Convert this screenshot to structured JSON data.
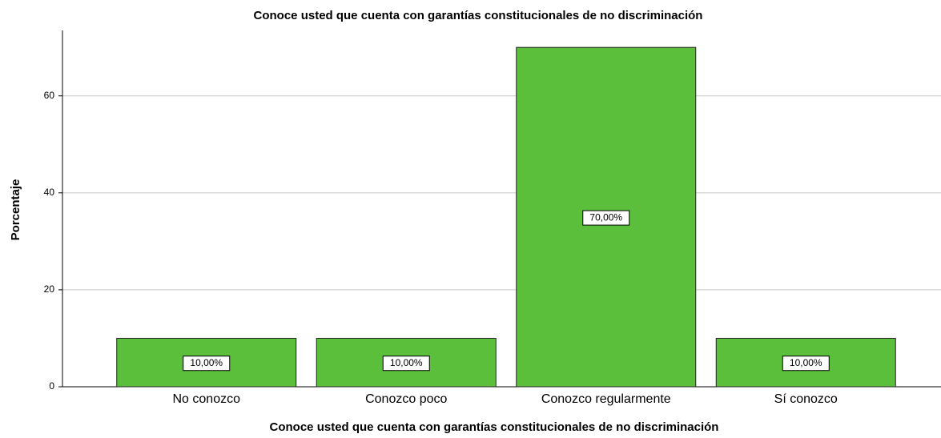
{
  "chart_data": {
    "type": "bar",
    "title": "Conoce usted que cuenta con garantías constitucionales de no discriminación",
    "x_label": "Conoce usted que cuenta con garantías constitucionales de no discriminación",
    "y_label": "Porcentaje",
    "categories": [
      "No conozco",
      "Conozco poco",
      "Conozco regularmente",
      "Sí conozco"
    ],
    "values": [
      10,
      10,
      70,
      10
    ],
    "value_labels": [
      "10,00%",
      "10,00%",
      "70,00%",
      "10,00%"
    ],
    "color": "#5cbf3c",
    "ylim": [
      0,
      73.5
    ],
    "yticks": [
      0,
      20,
      40,
      60
    ],
    "grid": true
  }
}
